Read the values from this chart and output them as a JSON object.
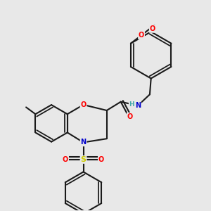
{
  "background_color": "#e8e8e8",
  "bond_color": "#1a1a1a",
  "bond_width": 1.5,
  "atom_colors": {
    "O": "#ff0000",
    "N": "#0000cc",
    "S": "#cccc00",
    "H": "#44aaaa",
    "C": "#1a1a1a"
  },
  "figsize": [
    3.0,
    3.0
  ],
  "dpi": 100
}
